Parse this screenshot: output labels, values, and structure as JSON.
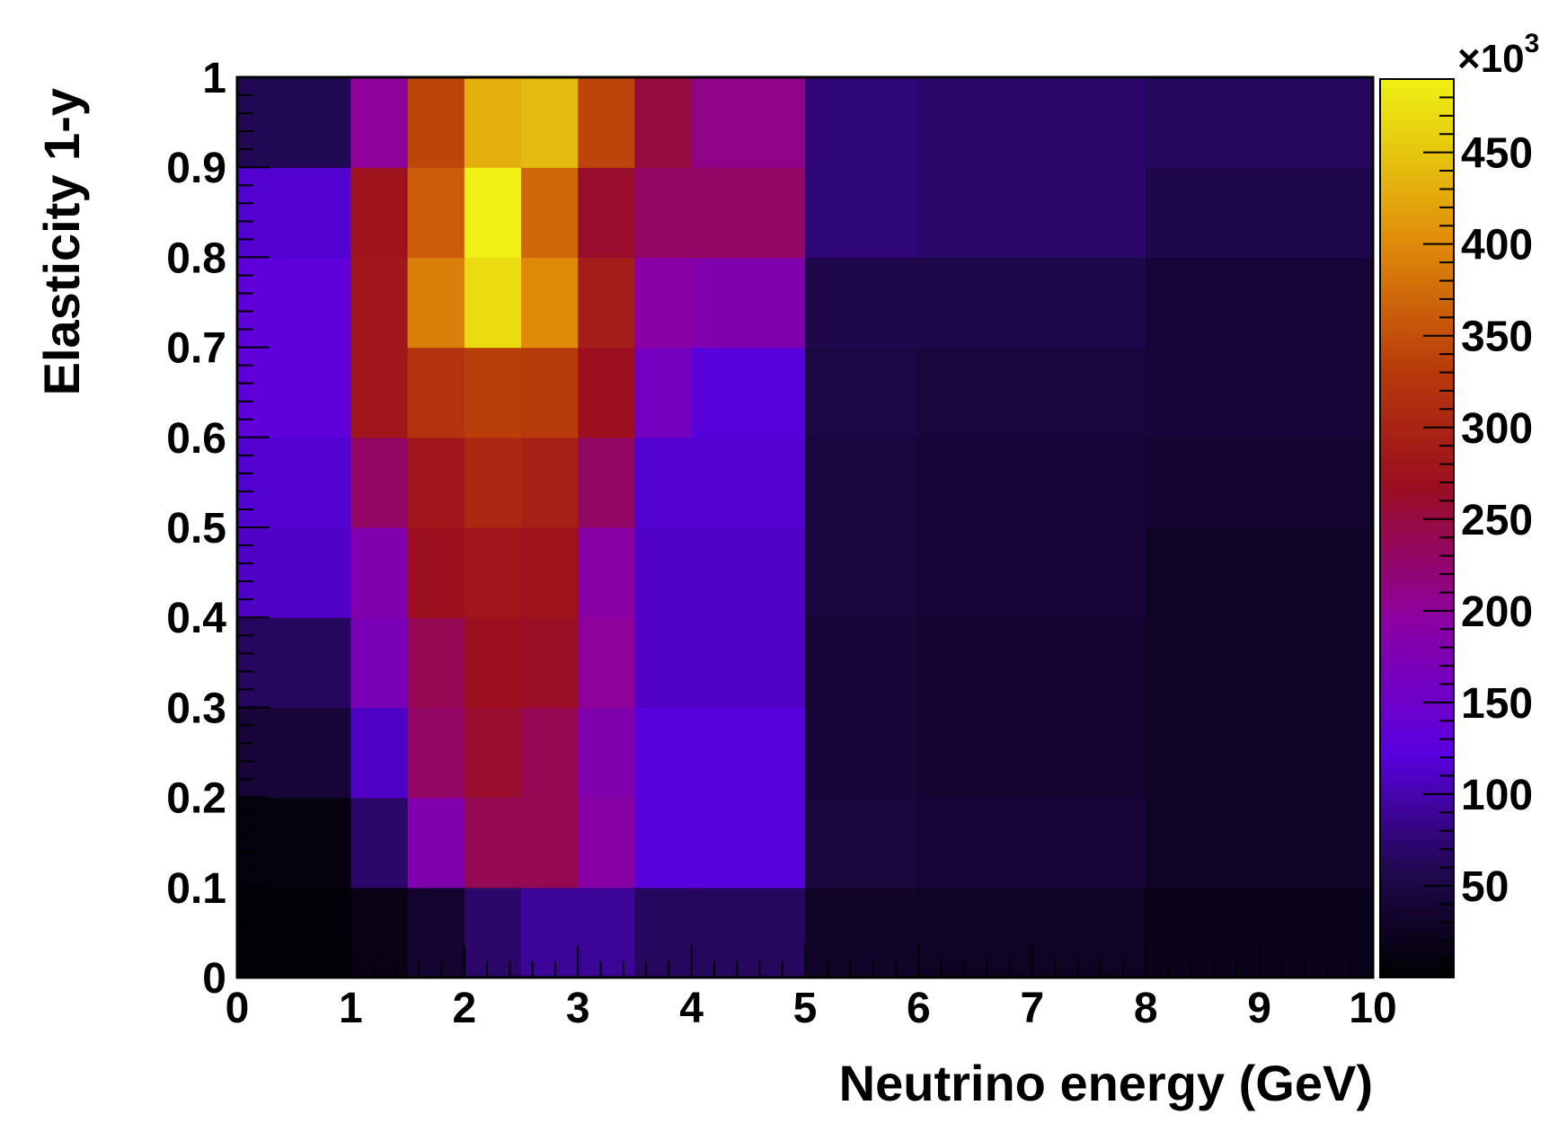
{
  "chart_data": {
    "type": "heatmap",
    "title": "",
    "xlabel": "Neutrino energy (GeV)",
    "ylabel": "Elasticity 1-y",
    "xlim": [
      0,
      10
    ],
    "ylim": [
      0,
      1
    ],
    "x_ticks": [
      "0",
      "1",
      "2",
      "3",
      "4",
      "5",
      "6",
      "7",
      "8",
      "9",
      "10"
    ],
    "y_ticks": [
      "0",
      "0.1",
      "0.2",
      "0.3",
      "0.4",
      "0.5",
      "0.6",
      "0.7",
      "0.8",
      "0.9",
      "1"
    ],
    "x_bin_edges": [
      0,
      1,
      1.5,
      2,
      2.5,
      3,
      3.5,
      4,
      5,
      6,
      8,
      10
    ],
    "y_bin_edges": [
      0,
      0.1,
      0.2,
      0.3,
      0.4,
      0.5,
      0.6,
      0.7,
      0.8,
      0.9,
      1.0
    ],
    "z_values": [
      [
        5,
        15,
        35,
        70,
        90,
        90,
        65,
        65,
        30,
        25,
        20
      ],
      [
        10,
        70,
        180,
        240,
        240,
        190,
        120,
        120,
        45,
        40,
        30
      ],
      [
        40,
        110,
        230,
        260,
        240,
        180,
        120,
        120,
        40,
        35,
        30
      ],
      [
        65,
        170,
        240,
        270,
        265,
        200,
        110,
        110,
        40,
        35,
        30
      ],
      [
        110,
        180,
        270,
        280,
        275,
        190,
        110,
        110,
        45,
        40,
        30
      ],
      [
        115,
        230,
        280,
        305,
        295,
        230,
        115,
        115,
        45,
        40,
        35
      ],
      [
        130,
        280,
        320,
        335,
        330,
        270,
        160,
        120,
        50,
        45,
        40
      ],
      [
        130,
        280,
        390,
        470,
        400,
        290,
        190,
        180,
        55,
        55,
        40
      ],
      [
        115,
        275,
        360,
        490,
        370,
        260,
        230,
        230,
        75,
        70,
        55
      ],
      [
        60,
        200,
        340,
        430,
        440,
        340,
        250,
        210,
        75,
        70,
        65
      ]
    ],
    "colorbar": {
      "ticks": [
        "50",
        "100",
        "150",
        "200",
        "250",
        "300",
        "350",
        "400",
        "450"
      ],
      "min": 0,
      "max": 490,
      "multiplier_base": "×10",
      "multiplier_exponent": "3"
    }
  }
}
